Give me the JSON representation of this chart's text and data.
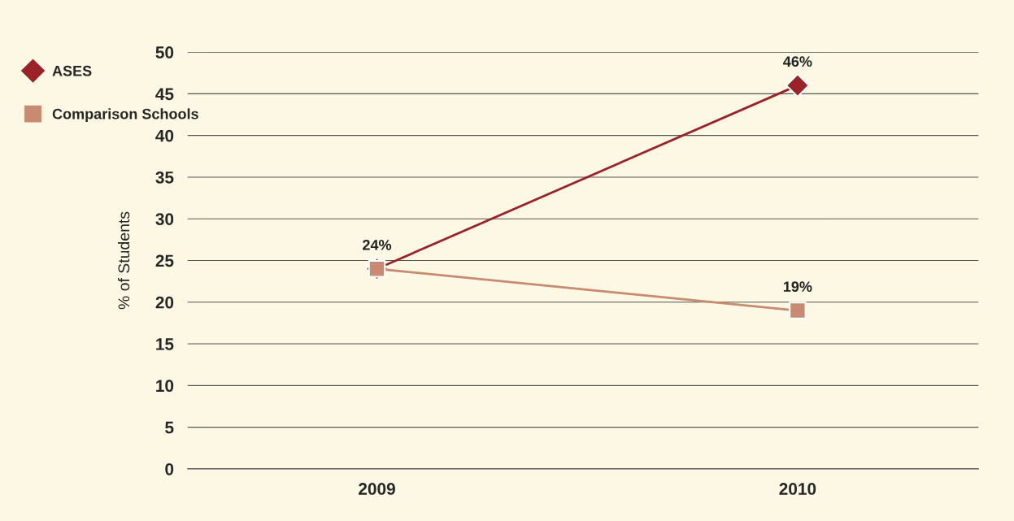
{
  "chart_data": {
    "type": "line",
    "ylabel": "% of Students",
    "categories": [
      "2009",
      "2010"
    ],
    "series": [
      {
        "name": "ASES",
        "color": "#9b2226",
        "marker": "diamond",
        "values": [
          24,
          46
        ],
        "value_labels": [
          "24%",
          "46%"
        ]
      },
      {
        "name": "Comparison Schools",
        "color": "#c88a70",
        "marker": "square",
        "values": [
          24,
          19
        ],
        "value_labels": [
          null,
          "19%"
        ]
      }
    ],
    "ylim": [
      0,
      50
    ],
    "yticks": [
      0,
      5,
      10,
      15,
      20,
      25,
      30,
      35,
      40,
      45,
      50
    ],
    "grid": "y",
    "legend": "left"
  }
}
